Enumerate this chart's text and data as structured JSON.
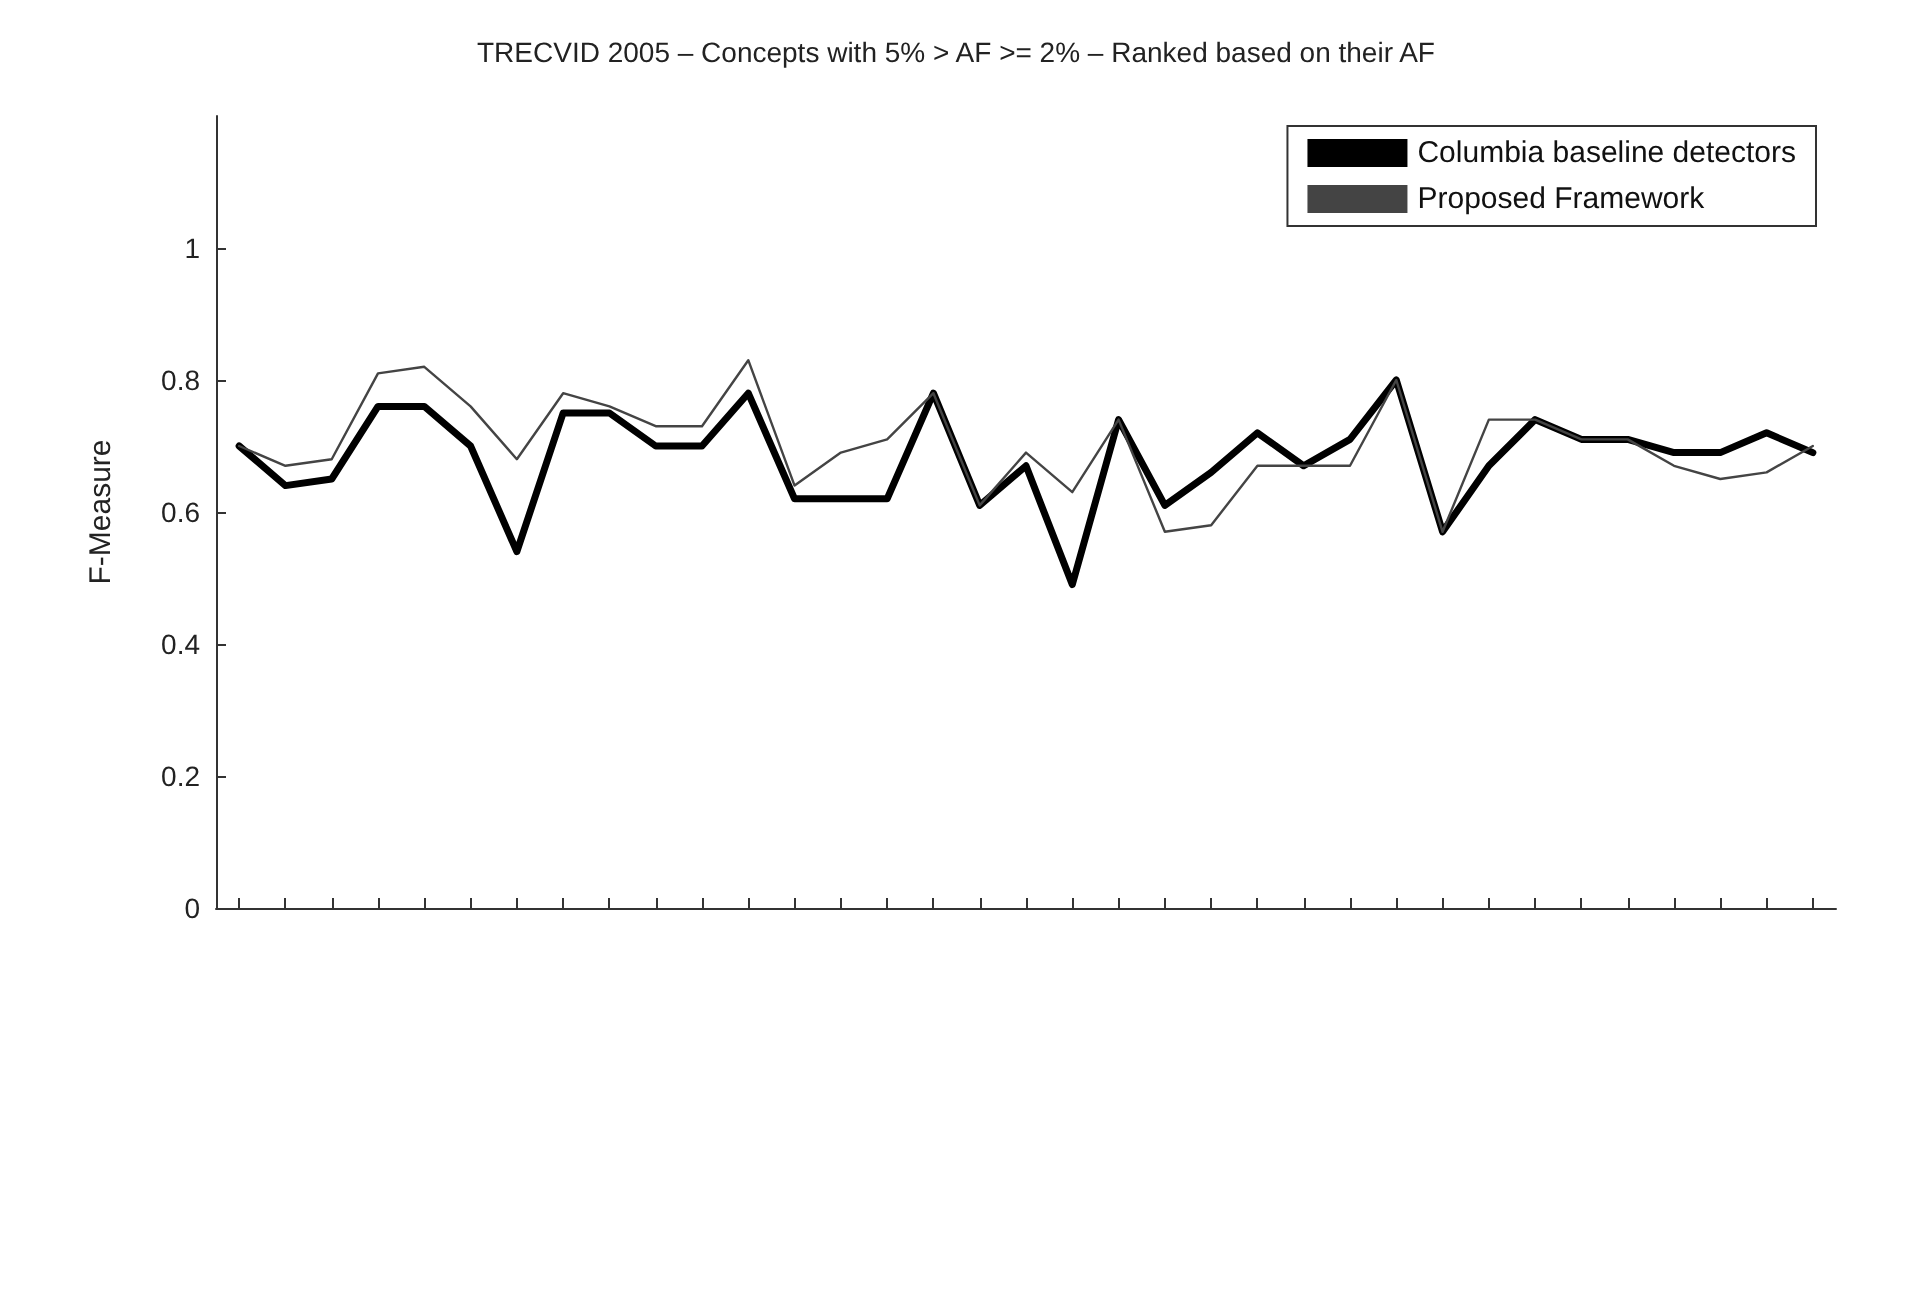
{
  "chart_data": {
    "type": "line",
    "title": "TRECVID 2005 – Concepts with 5% > AF >= 2% – Ranked based on their AF",
    "ylabel": "F-Measure",
    "categories": [
      null,
      null,
      null,
      null,
      null,
      null,
      null,
      null,
      null,
      null,
      null,
      null,
      null,
      null,
      null,
      null,
      null,
      null,
      null,
      null,
      null,
      null,
      null,
      null,
      null,
      null,
      null,
      null,
      null,
      null,
      null,
      null,
      null,
      null,
      null
    ],
    "series": [
      {
        "name": "Columbia baseline detectors",
        "color": "#000000",
        "values": [
          0.7,
          0.64,
          0.65,
          0.76,
          0.76,
          0.7,
          0.54,
          0.75,
          0.75,
          0.7,
          0.7,
          0.78,
          0.62,
          0.62,
          0.62,
          0.78,
          0.61,
          0.67,
          0.49,
          0.74,
          0.61,
          0.66,
          0.72,
          0.67,
          0.71,
          0.8,
          0.57,
          0.67,
          0.74,
          0.71,
          0.71,
          0.69,
          0.69,
          0.72,
          0.69
        ]
      },
      {
        "name": "Proposed Framework",
        "color": "#444444",
        "values": [
          0.7,
          0.67,
          0.68,
          0.81,
          0.82,
          0.76,
          0.68,
          0.78,
          0.76,
          0.73,
          0.73,
          0.83,
          0.64,
          0.69,
          0.71,
          0.78,
          0.61,
          0.69,
          0.63,
          0.74,
          0.57,
          0.58,
          0.67,
          0.67,
          0.67,
          0.8,
          0.57,
          0.74,
          0.74,
          0.71,
          0.71,
          0.67,
          0.65,
          0.66,
          0.7
        ]
      }
    ],
    "ylim": [
      0,
      1.2
    ],
    "yticks": [
      0,
      0.2,
      0.4,
      0.6,
      0.8,
      1
    ],
    "grid": false,
    "legend": "top right",
    "marker": "none",
    "line_style": "solid"
  }
}
